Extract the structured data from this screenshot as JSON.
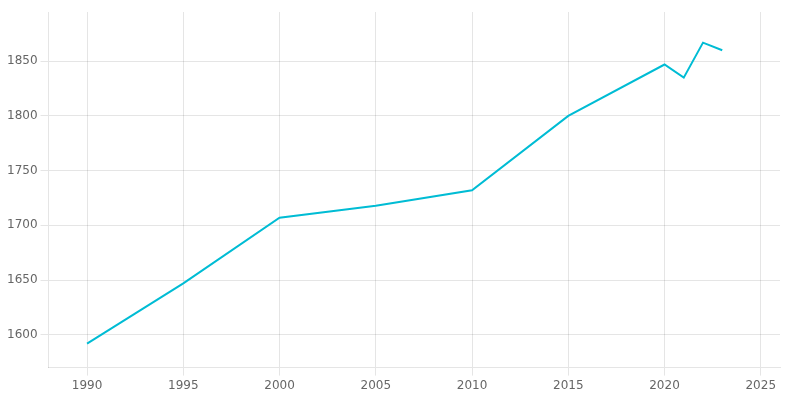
{
  "chart_data": {
    "type": "line",
    "x": [
      1990,
      1995,
      2000,
      2005,
      2010,
      2015,
      2020,
      2021,
      2022,
      2023
    ],
    "values": [
      1592,
      1647,
      1707,
      1718,
      1732,
      1800,
      1847,
      1835,
      1867,
      1860
    ],
    "color": "#00bcd4",
    "xlim": [
      1988,
      2026
    ],
    "ylim": [
      1570,
      1895
    ],
    "xticks": [
      1990,
      1995,
      2000,
      2005,
      2010,
      2015,
      2020,
      2025
    ],
    "yticks": [
      1600,
      1650,
      1700,
      1750,
      1800,
      1850
    ],
    "grid": true
  }
}
